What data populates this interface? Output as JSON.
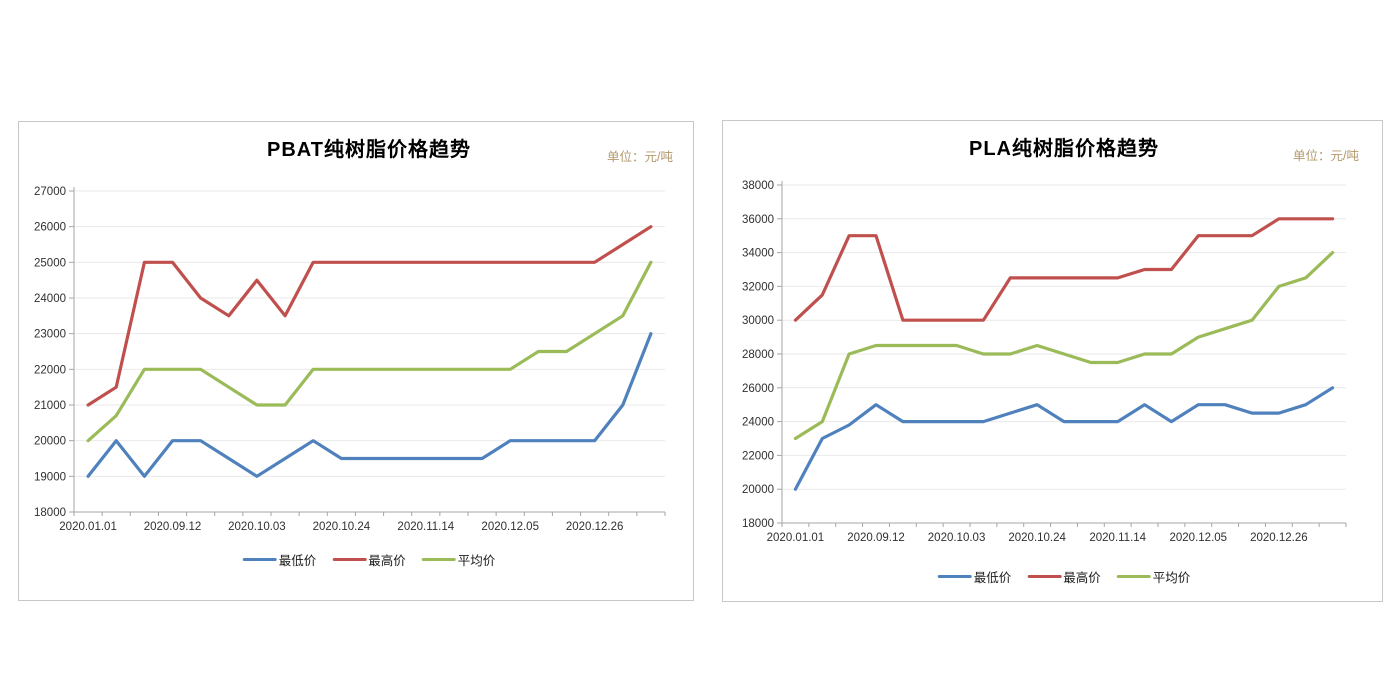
{
  "styles": {
    "grid_color": "#e9e9e9",
    "axis_color": "#a6a6a6",
    "tick_label_color": "#303030",
    "unit_color": "#b3986b",
    "card_border_color": "#c8c8c8",
    "series_colors": {
      "lowest": "#4f81bd",
      "highest": "#c0504d",
      "average": "#9bbb59"
    }
  },
  "chart_data": [
    {
      "type": "line",
      "title": "PBAT纯树脂价格趋势",
      "unit_label": "单位：元/吨",
      "ylim": [
        18000,
        27000
      ],
      "ystep": 1000,
      "n_points": 21,
      "grid": true,
      "legend_position": "bottom",
      "x_label_interval": 3,
      "x_tick_labels": [
        "2020.01.01",
        "2020.09.12",
        "2020.10.03",
        "2020.10.24",
        "2020.11.14",
        "2020.12.05",
        "2020.12.26"
      ],
      "series": [
        {
          "name": "最低价",
          "key": "lowest",
          "color": "#4f81bd",
          "values": [
            19000,
            20000,
            19000,
            20000,
            20000,
            19500,
            19000,
            19500,
            20000,
            19500,
            19500,
            19500,
            19500,
            19500,
            19500,
            20000,
            20000,
            20000,
            20000,
            21000,
            23000
          ]
        },
        {
          "name": "最高价",
          "key": "highest",
          "color": "#c0504d",
          "values": [
            21000,
            21500,
            25000,
            25000,
            24000,
            23500,
            24500,
            23500,
            25000,
            25000,
            25000,
            25000,
            25000,
            25000,
            25000,
            25000,
            25000,
            25000,
            25000,
            25500,
            26000
          ]
        },
        {
          "name": "平均价",
          "key": "average",
          "color": "#9bbb59",
          "values": [
            20000,
            20700,
            22000,
            22000,
            22000,
            21500,
            21000,
            21000,
            22000,
            22000,
            22000,
            22000,
            22000,
            22000,
            22000,
            22000,
            22500,
            22500,
            23000,
            23500,
            25000
          ]
        }
      ]
    },
    {
      "type": "line",
      "title": "PLA纯树脂价格趋势",
      "unit_label": "单位：元/吨",
      "ylim": [
        18000,
        38000
      ],
      "ystep": 2000,
      "n_points": 21,
      "grid": true,
      "legend_position": "bottom",
      "x_label_interval": 3,
      "x_tick_labels": [
        "2020.01.01",
        "2020.09.12",
        "2020.10.03",
        "2020.10.24",
        "2020.11.14",
        "2020.12.05",
        "2020.12.26"
      ],
      "series": [
        {
          "name": "最低价",
          "key": "lowest",
          "color": "#4f81bd",
          "values": [
            20000,
            23000,
            23800,
            25000,
            24000,
            24000,
            24000,
            24000,
            24500,
            25000,
            24000,
            24000,
            24000,
            25000,
            24000,
            25000,
            25000,
            24500,
            24500,
            25000,
            26000
          ]
        },
        {
          "name": "最高价",
          "key": "highest",
          "color": "#c0504d",
          "values": [
            30000,
            31500,
            35000,
            35000,
            30000,
            30000,
            30000,
            30000,
            32500,
            32500,
            32500,
            32500,
            32500,
            33000,
            33000,
            35000,
            35000,
            35000,
            36000,
            36000,
            36000
          ]
        },
        {
          "name": "平均价",
          "key": "average",
          "color": "#9bbb59",
          "values": [
            23000,
            24000,
            28000,
            28500,
            28500,
            28500,
            28500,
            28000,
            28000,
            28500,
            28000,
            27500,
            27500,
            28000,
            28000,
            29000,
            29500,
            30000,
            32000,
            32500,
            34000
          ]
        }
      ]
    }
  ]
}
